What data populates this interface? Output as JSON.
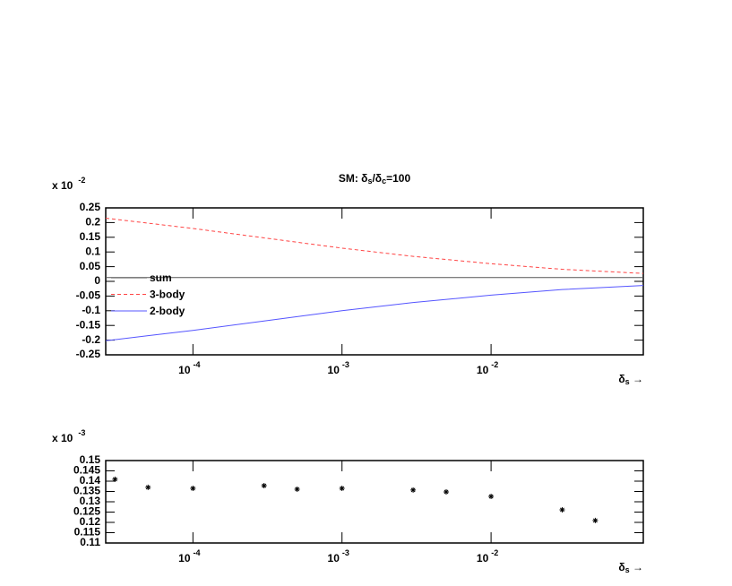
{
  "chart_data": [
    {
      "type": "line",
      "title": [
        "SM: δ",
        "s",
        "/δ",
        "c",
        "=100"
      ],
      "y_scale_label": "x 10",
      "y_scale_exponent": "-2",
      "x_label": [
        "δ",
        "s",
        " →"
      ],
      "log_x": true,
      "xlim": [
        2.6e-05,
        0.105
      ],
      "xticks": [
        {
          "value": 0.0001,
          "label": "10",
          "exponent": "-4"
        },
        {
          "value": 0.001,
          "label": "10",
          "exponent": "-3"
        },
        {
          "value": 0.01,
          "label": "10",
          "exponent": "-2"
        }
      ],
      "ylim": [
        -0.25,
        0.25
      ],
      "yticks": [
        -0.25,
        -0.2,
        -0.15,
        -0.1,
        -0.05,
        0,
        0.05,
        0.1,
        0.15,
        0.2,
        0.25
      ],
      "x": [
        2.6e-05,
        5e-05,
        0.0001,
        0.0003,
        0.001,
        0.003,
        0.01,
        0.03,
        0.105
      ],
      "series": [
        {
          "name": "sum",
          "color": "#555555",
          "style": "solid",
          "values": [
            0.013,
            0.013,
            0.013,
            0.013,
            0.013,
            0.013,
            0.013,
            0.013,
            0.013
          ]
        },
        {
          "name": "3-body",
          "color": "#ff4444",
          "style": "dashed",
          "values": [
            0.215,
            0.198,
            0.18,
            0.148,
            0.113,
            0.085,
            0.06,
            0.041,
            0.027
          ]
        },
        {
          "name": "2-body",
          "color": "#5555ff",
          "style": "solid",
          "values": [
            -0.202,
            -0.185,
            -0.167,
            -0.135,
            -0.1,
            -0.072,
            -0.047,
            -0.028,
            -0.014
          ]
        }
      ]
    },
    {
      "type": "scatter",
      "y_scale_label": "x 10",
      "y_scale_exponent": "-3",
      "x_label": [
        "δ",
        "s",
        " →"
      ],
      "log_x": true,
      "xlim": [
        2.6e-05,
        0.105
      ],
      "xticks": [
        {
          "value": 0.0001,
          "label": "10",
          "exponent": "-4"
        },
        {
          "value": 0.001,
          "label": "10",
          "exponent": "-3"
        },
        {
          "value": 0.01,
          "label": "10",
          "exponent": "-2"
        }
      ],
      "ylim": [
        0.11,
        0.15
      ],
      "yticks": [
        0.11,
        0.115,
        0.12,
        0.125,
        0.13,
        0.135,
        0.14,
        0.145,
        0.15
      ],
      "x": [
        3e-05,
        5e-05,
        0.0001,
        0.0003,
        0.0005,
        0.001,
        0.003,
        0.005,
        0.01,
        0.03,
        0.05
      ],
      "values": [
        0.1409,
        0.137,
        0.1365,
        0.1378,
        0.1361,
        0.1365,
        0.1357,
        0.1348,
        0.1326,
        0.1261,
        0.1209
      ],
      "color": "#000000"
    }
  ]
}
